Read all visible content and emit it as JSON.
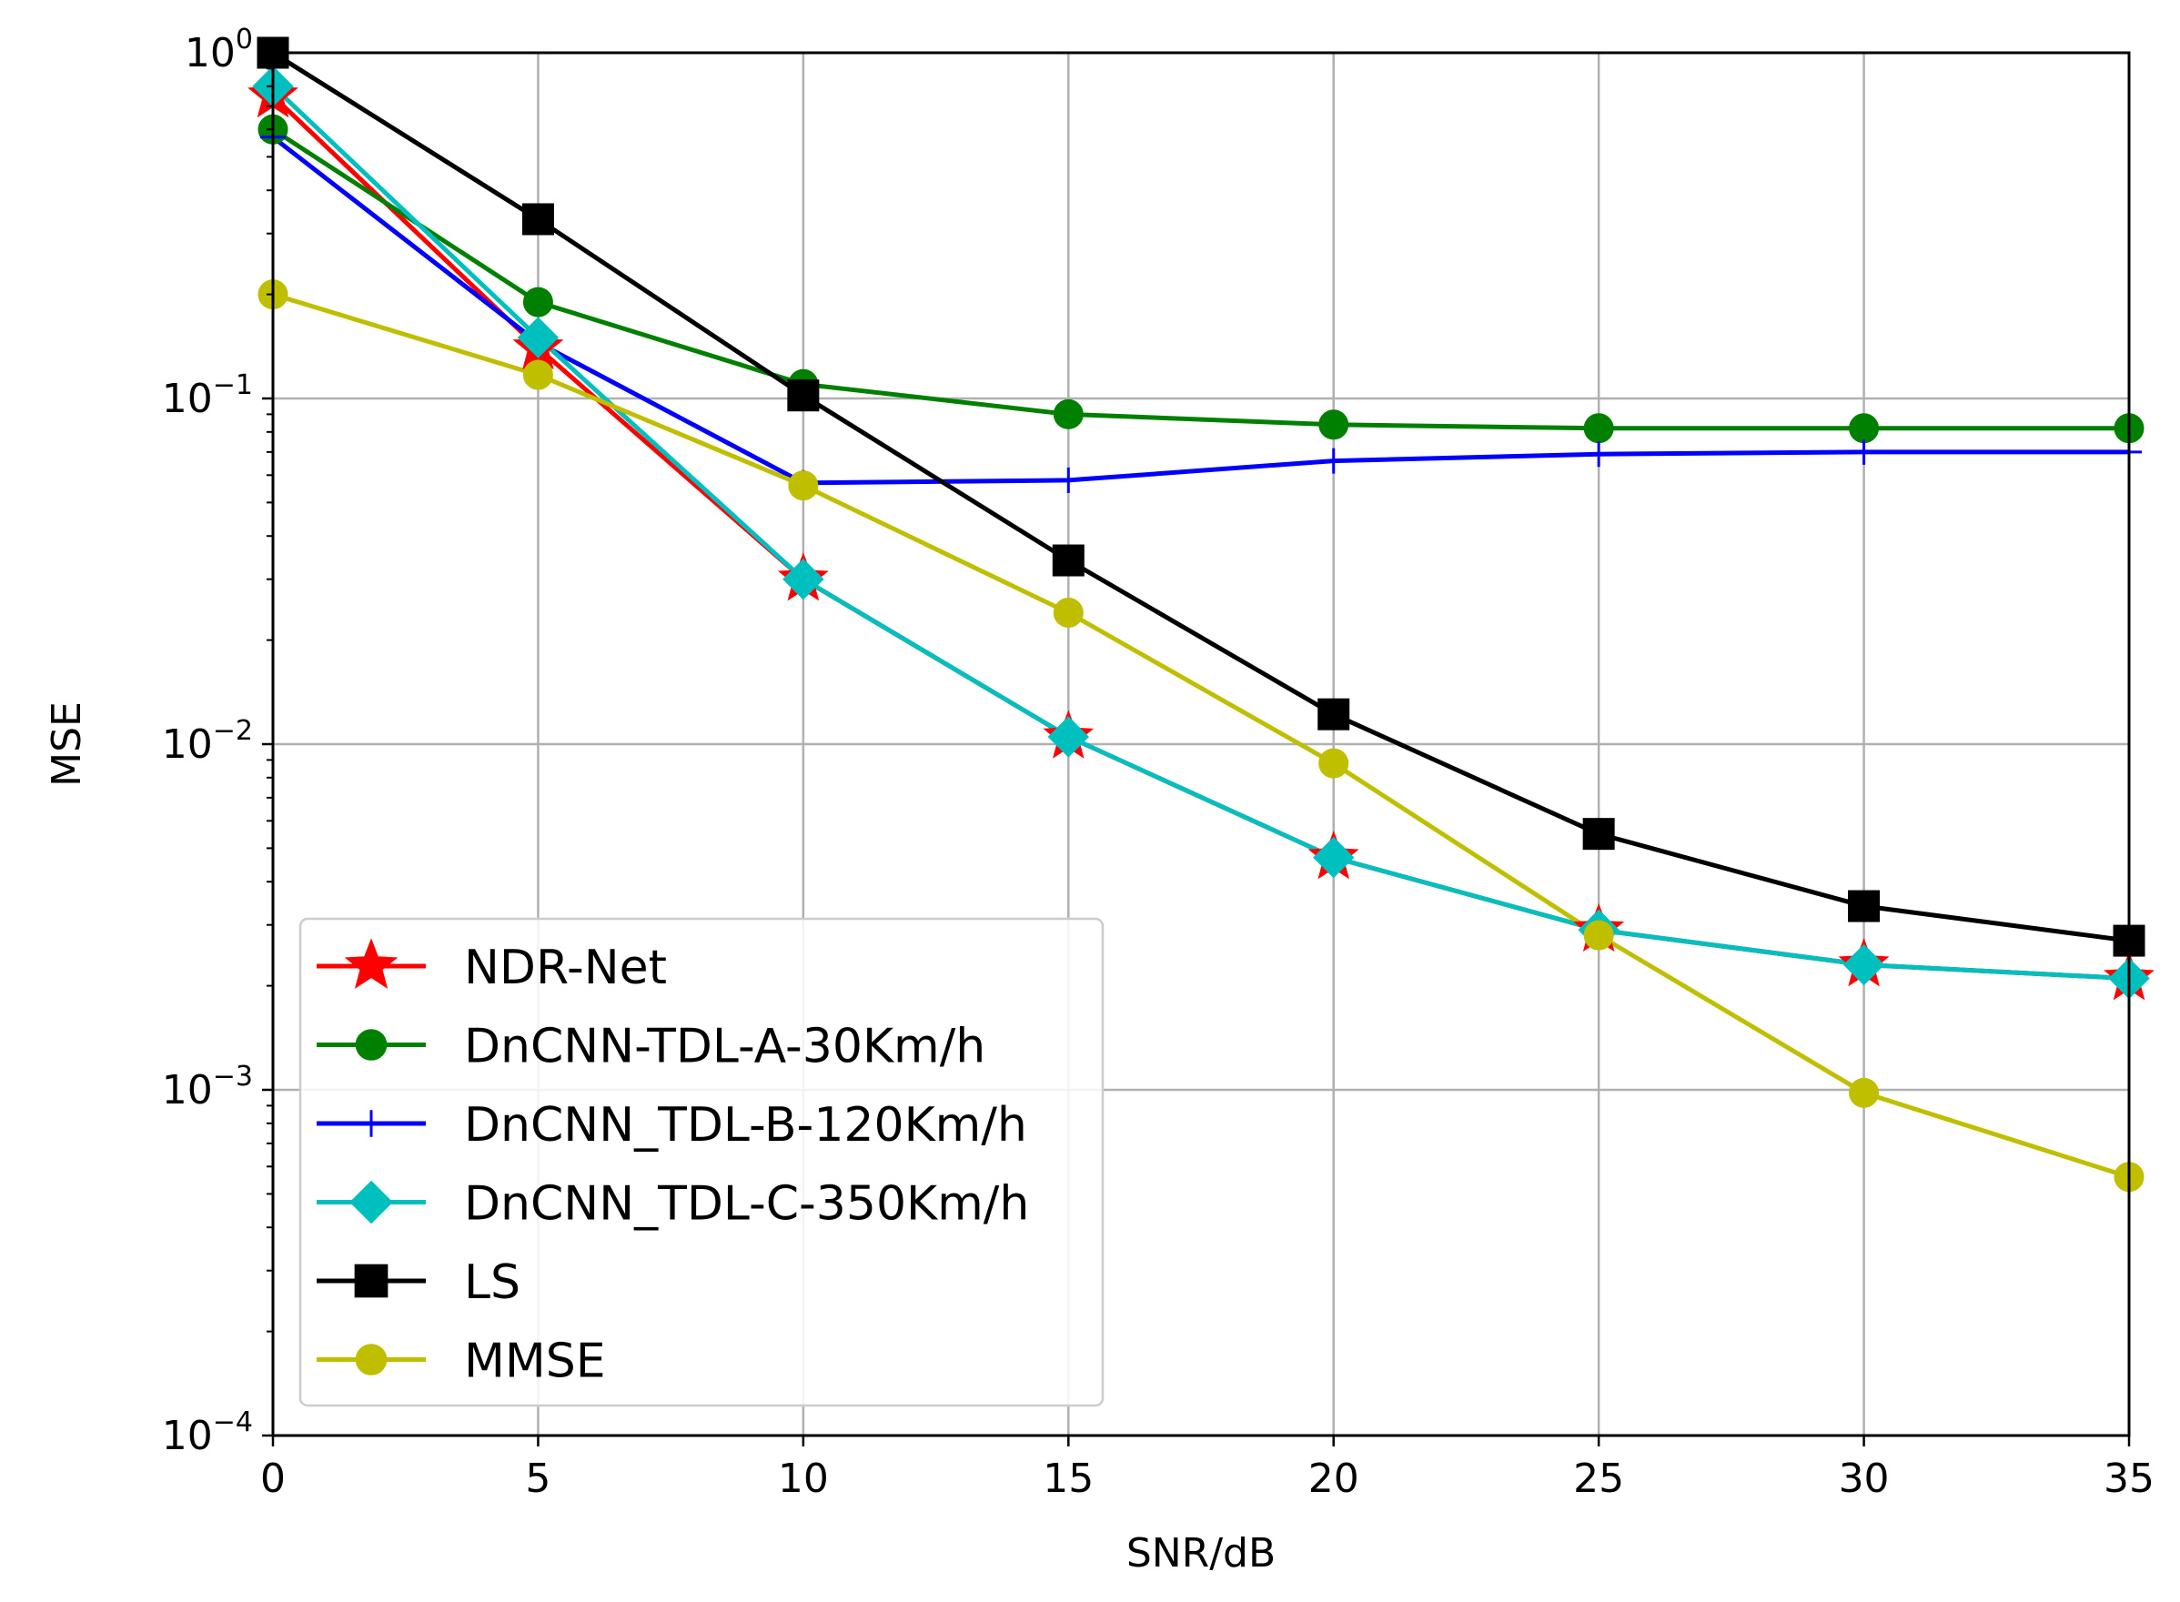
{
  "chart_data": {
    "type": "line",
    "xlabel": "SNR/dB",
    "ylabel": "MSE",
    "xscale": "linear",
    "yscale": "log",
    "xlim": [
      0,
      35
    ],
    "ylim": [
      0.0001,
      1
    ],
    "grid": true,
    "legend_position": "lower-left",
    "x": [
      0,
      5,
      10,
      15,
      20,
      25,
      30,
      35
    ],
    "x_ticks": [
      "0",
      "5",
      "10",
      "15",
      "20",
      "25",
      "30",
      "35"
    ],
    "y_ticks": [
      {
        "value": 1,
        "base": "10",
        "exp": "0"
      },
      {
        "value": 0.1,
        "base": "10",
        "exp": "−1"
      },
      {
        "value": 0.01,
        "base": "10",
        "exp": "−2"
      },
      {
        "value": 0.001,
        "base": "10",
        "exp": "−3"
      },
      {
        "value": 0.0001,
        "base": "10",
        "exp": "−4"
      }
    ],
    "series": [
      {
        "name": "NDR-Net",
        "color": "#ff0000",
        "marker": "star",
        "values": [
          0.75,
          0.14,
          0.03,
          0.0105,
          0.0047,
          0.0029,
          0.0023,
          0.0021
        ]
      },
      {
        "name": "DnCNN-TDL-A-30Km/h",
        "color": "#008000",
        "marker": "circle",
        "values": [
          0.6,
          0.19,
          0.11,
          0.09,
          0.084,
          0.082,
          0.082,
          0.082
        ]
      },
      {
        "name": "DnCNN_TDL-B-120Km/h",
        "color": "#0000ff",
        "marker": "plus",
        "values": [
          0.57,
          0.145,
          0.057,
          0.058,
          0.066,
          0.069,
          0.07,
          0.07
        ]
      },
      {
        "name": "DnCNN_TDL-C-350Km/h",
        "color": "#00bfbf",
        "marker": "diamond",
        "values": [
          0.8,
          0.15,
          0.03,
          0.0105,
          0.0047,
          0.0029,
          0.0023,
          0.0021
        ]
      },
      {
        "name": "LS",
        "color": "#000000",
        "marker": "square",
        "values": [
          1.0,
          0.33,
          0.102,
          0.034,
          0.0122,
          0.0055,
          0.0034,
          0.0027
        ]
      },
      {
        "name": "MMSE",
        "color": "#bfbf00",
        "marker": "circle",
        "values": [
          0.2,
          0.117,
          0.056,
          0.024,
          0.0088,
          0.0028,
          0.00098,
          0.00056
        ]
      }
    ]
  }
}
